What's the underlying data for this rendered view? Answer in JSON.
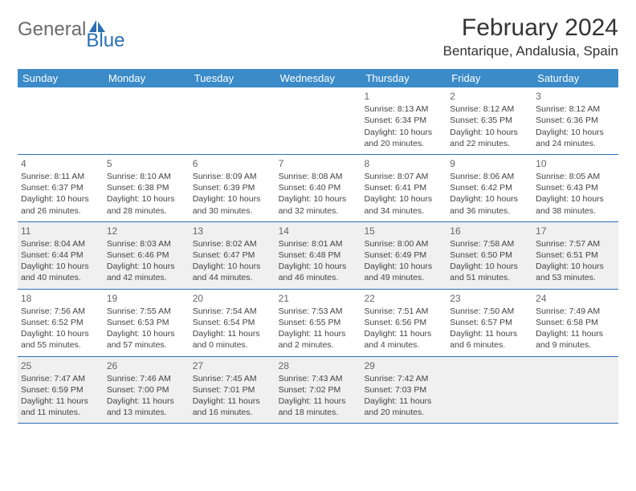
{
  "logo": {
    "text1": "General",
    "text2": "Blue"
  },
  "title": "February 2024",
  "location": "Bentarique, Andalusia, Spain",
  "colors": {
    "header_bg": "#3b8bc9",
    "border": "#2a6fb5",
    "shade": "#f0f0f0",
    "logo_gray": "#6a6a6a",
    "logo_blue": "#2a6fb5"
  },
  "weekdays": [
    "Sunday",
    "Monday",
    "Tuesday",
    "Wednesday",
    "Thursday",
    "Friday",
    "Saturday"
  ],
  "weeks": [
    [
      null,
      null,
      null,
      null,
      {
        "n": "1",
        "sr": "8:13 AM",
        "ss": "6:34 PM",
        "dl": "10 hours and 20 minutes."
      },
      {
        "n": "2",
        "sr": "8:12 AM",
        "ss": "6:35 PM",
        "dl": "10 hours and 22 minutes."
      },
      {
        "n": "3",
        "sr": "8:12 AM",
        "ss": "6:36 PM",
        "dl": "10 hours and 24 minutes."
      }
    ],
    [
      {
        "n": "4",
        "sr": "8:11 AM",
        "ss": "6:37 PM",
        "dl": "10 hours and 26 minutes."
      },
      {
        "n": "5",
        "sr": "8:10 AM",
        "ss": "6:38 PM",
        "dl": "10 hours and 28 minutes."
      },
      {
        "n": "6",
        "sr": "8:09 AM",
        "ss": "6:39 PM",
        "dl": "10 hours and 30 minutes."
      },
      {
        "n": "7",
        "sr": "8:08 AM",
        "ss": "6:40 PM",
        "dl": "10 hours and 32 minutes."
      },
      {
        "n": "8",
        "sr": "8:07 AM",
        "ss": "6:41 PM",
        "dl": "10 hours and 34 minutes."
      },
      {
        "n": "9",
        "sr": "8:06 AM",
        "ss": "6:42 PM",
        "dl": "10 hours and 36 minutes."
      },
      {
        "n": "10",
        "sr": "8:05 AM",
        "ss": "6:43 PM",
        "dl": "10 hours and 38 minutes."
      }
    ],
    [
      {
        "n": "11",
        "sr": "8:04 AM",
        "ss": "6:44 PM",
        "dl": "10 hours and 40 minutes."
      },
      {
        "n": "12",
        "sr": "8:03 AM",
        "ss": "6:46 PM",
        "dl": "10 hours and 42 minutes."
      },
      {
        "n": "13",
        "sr": "8:02 AM",
        "ss": "6:47 PM",
        "dl": "10 hours and 44 minutes."
      },
      {
        "n": "14",
        "sr": "8:01 AM",
        "ss": "6:48 PM",
        "dl": "10 hours and 46 minutes."
      },
      {
        "n": "15",
        "sr": "8:00 AM",
        "ss": "6:49 PM",
        "dl": "10 hours and 49 minutes."
      },
      {
        "n": "16",
        "sr": "7:58 AM",
        "ss": "6:50 PM",
        "dl": "10 hours and 51 minutes."
      },
      {
        "n": "17",
        "sr": "7:57 AM",
        "ss": "6:51 PM",
        "dl": "10 hours and 53 minutes."
      }
    ],
    [
      {
        "n": "18",
        "sr": "7:56 AM",
        "ss": "6:52 PM",
        "dl": "10 hours and 55 minutes."
      },
      {
        "n": "19",
        "sr": "7:55 AM",
        "ss": "6:53 PM",
        "dl": "10 hours and 57 minutes."
      },
      {
        "n": "20",
        "sr": "7:54 AM",
        "ss": "6:54 PM",
        "dl": "11 hours and 0 minutes."
      },
      {
        "n": "21",
        "sr": "7:53 AM",
        "ss": "6:55 PM",
        "dl": "11 hours and 2 minutes."
      },
      {
        "n": "22",
        "sr": "7:51 AM",
        "ss": "6:56 PM",
        "dl": "11 hours and 4 minutes."
      },
      {
        "n": "23",
        "sr": "7:50 AM",
        "ss": "6:57 PM",
        "dl": "11 hours and 6 minutes."
      },
      {
        "n": "24",
        "sr": "7:49 AM",
        "ss": "6:58 PM",
        "dl": "11 hours and 9 minutes."
      }
    ],
    [
      {
        "n": "25",
        "sr": "7:47 AM",
        "ss": "6:59 PM",
        "dl": "11 hours and 11 minutes."
      },
      {
        "n": "26",
        "sr": "7:46 AM",
        "ss": "7:00 PM",
        "dl": "11 hours and 13 minutes."
      },
      {
        "n": "27",
        "sr": "7:45 AM",
        "ss": "7:01 PM",
        "dl": "11 hours and 16 minutes."
      },
      {
        "n": "28",
        "sr": "7:43 AM",
        "ss": "7:02 PM",
        "dl": "11 hours and 18 minutes."
      },
      {
        "n": "29",
        "sr": "7:42 AM",
        "ss": "7:03 PM",
        "dl": "11 hours and 20 minutes."
      },
      null,
      null
    ]
  ],
  "labels": {
    "sunrise": "Sunrise: ",
    "sunset": "Sunset: ",
    "daylight": "Daylight: "
  }
}
